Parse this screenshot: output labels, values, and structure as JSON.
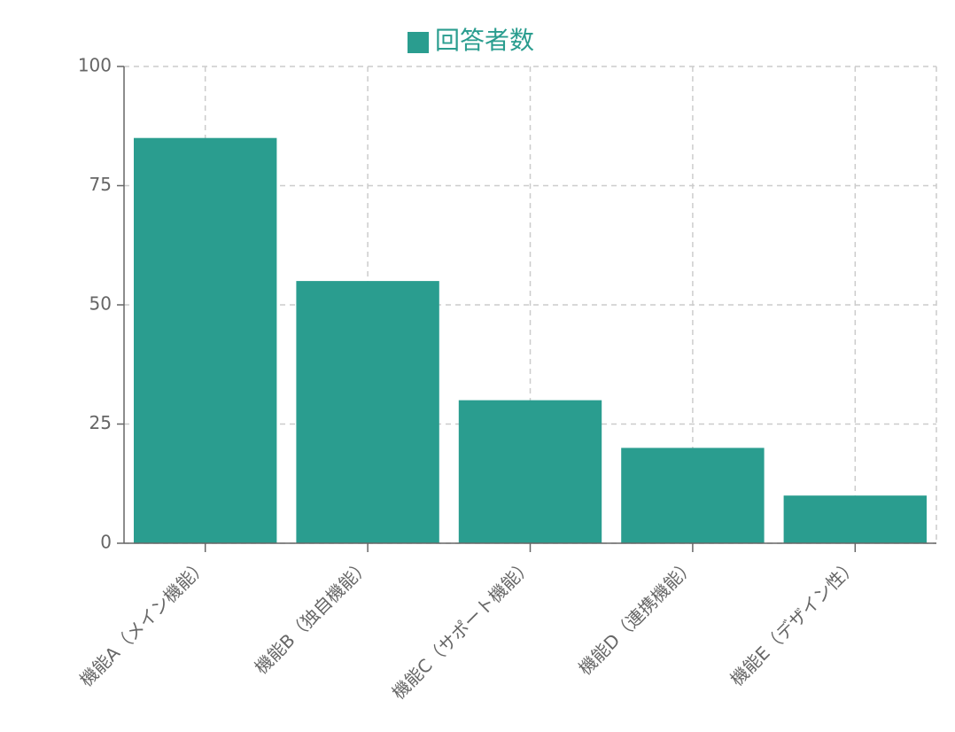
{
  "chart_data": {
    "type": "bar",
    "categories": [
      "機能A（メイン機能）",
      "機能B（独自機能）",
      "機能C（サポート機能）",
      "機能D（連携機能）",
      "機能E（デザイン性）"
    ],
    "series": [
      {
        "name": "回答者数",
        "color": "#2a9d8f",
        "values": [
          85,
          55,
          30,
          20,
          10
        ]
      }
    ],
    "ylim": [
      0,
      100
    ],
    "yticks": [
      0,
      25,
      50,
      75,
      100
    ],
    "grid": true,
    "legend": "top"
  }
}
